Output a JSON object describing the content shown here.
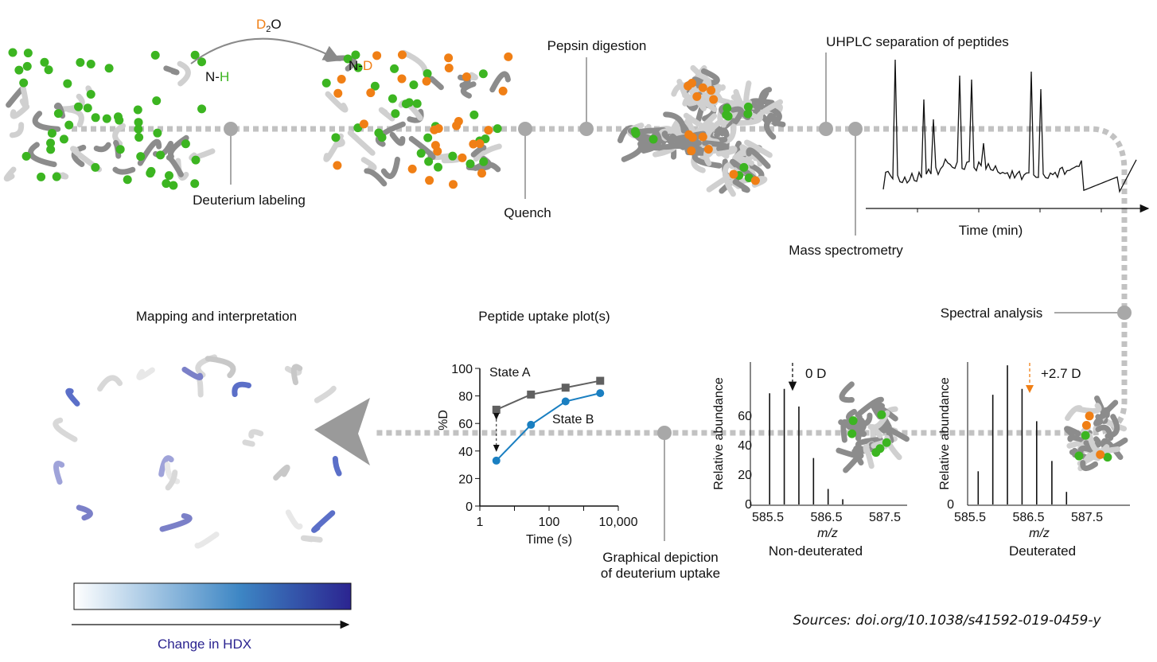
{
  "colors": {
    "green": "#3cb521",
    "orange": "#f07f15",
    "stateA": "#606060",
    "stateB": "#1a7fc1",
    "track": "#c2c2c2",
    "node": "#a8a8a8",
    "hdx": "#2b2490"
  },
  "top": {
    "d2o": "D",
    "d2o_sub": "2",
    "d2o_o": "O",
    "nh_n": "N-",
    "nh_h": "H",
    "nd_n": "N-",
    "nd_d": "D",
    "deuterium_labeling": "Deuterium labeling",
    "quench": "Quench",
    "pepsin_digestion": "Pepsin digestion",
    "uhplc": "UHPLC separation of peptides",
    "time_min": "Time (min)",
    "mass_spectrometry": "Mass spectrometry",
    "spectral_analysis": "Spectral analysis"
  },
  "bottom": {
    "mapping": "Mapping and interpretation",
    "uptake_title": "Peptide uptake plot(s)",
    "graphical_1": "Graphical depiction",
    "graphical_2": "of deuterium uptake",
    "change_hdx": "Change in HDX",
    "sources": "Sources: doi.org/10.1038/s41592-019-0459-y"
  },
  "chart_data": [
    {
      "type": "line",
      "title": "Peptide uptake plot(s)",
      "xlabel": "Time (s)",
      "ylabel": "%D",
      "xscale": "log",
      "xlim": [
        1,
        10000
      ],
      "ylim": [
        0,
        100
      ],
      "xticks": [
        "1",
        "100",
        "10,000"
      ],
      "yticks": [
        "0",
        "20",
        "40",
        "60",
        "80",
        "100"
      ],
      "series": [
        {
          "name": "State A",
          "x": [
            3,
            30,
            300,
            3000
          ],
          "values": [
            70,
            81,
            86,
            91
          ]
        },
        {
          "name": "State B",
          "x": [
            3,
            30,
            300,
            3000
          ],
          "values": [
            33,
            59,
            76,
            82
          ]
        }
      ]
    },
    {
      "type": "bar",
      "title": "Non-deuterated",
      "annotation": "0 D",
      "xlabel": "m/z",
      "ylabel": "Relative abundance",
      "xticks": [
        "585.5",
        "586.5",
        "587.5"
      ],
      "yticks": [
        "0",
        "20",
        "40",
        "60"
      ],
      "x": [
        585.53,
        585.78,
        586.03,
        586.28,
        586.53,
        586.78
      ],
      "values": [
        75,
        78,
        66,
        31,
        10,
        3
      ]
    },
    {
      "type": "bar",
      "title": "Deuterated",
      "annotation": "+2.7 D",
      "xlabel": "m/z",
      "ylabel": "Relative abundance",
      "xticks": [
        "585.5",
        "586.5",
        "587.5"
      ],
      "yticks": [
        "0"
      ],
      "x": [
        585.64,
        585.89,
        586.14,
        586.39,
        586.64,
        586.9,
        587.15
      ],
      "values": [
        22,
        74,
        94,
        78,
        56,
        29,
        8
      ]
    }
  ]
}
